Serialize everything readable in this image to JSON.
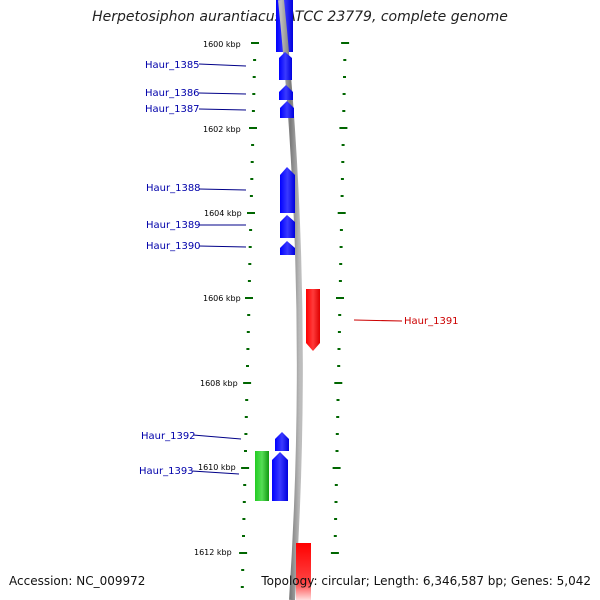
{
  "title": "Herpetosiphon aurantiacus ATCC 23779, complete genome",
  "footer": {
    "accession": "Accession: NC_009972",
    "stats": "Topology: circular; Length: 6,346,587 bp; Genes: 5,042"
  },
  "scale_labels": [
    "1600 kbp",
    "1602 kbp",
    "1604 kbp",
    "1606 kbp",
    "1608 kbp",
    "1610 kbp",
    "1612 kbp"
  ],
  "genes": [
    {
      "label": "Haur_1385",
      "strand": "reverse",
      "color": "#0000ee"
    },
    {
      "label": "Haur_1386",
      "strand": "reverse",
      "color": "#0000ee"
    },
    {
      "label": "Haur_1387",
      "strand": "reverse",
      "color": "#0000ee"
    },
    {
      "label": "Haur_1388",
      "strand": "reverse",
      "color": "#0000ee"
    },
    {
      "label": "Haur_1389",
      "strand": "reverse",
      "color": "#0000ee"
    },
    {
      "label": "Haur_1390",
      "strand": "reverse",
      "color": "#0000ee"
    },
    {
      "label": "Haur_1391",
      "strand": "forward",
      "color": "#ee0000"
    },
    {
      "label": "Haur_1392",
      "strand": "reverse",
      "color": "#0000ee"
    },
    {
      "label": "Haur_1393",
      "strand": "reverse",
      "color": "#0000ee"
    }
  ],
  "colors": {
    "reverse_strand": "#0000ee",
    "forward_strand": "#ee0000",
    "green_feature": "#22bb22",
    "backbone": "#888888",
    "ticks": "#006600"
  }
}
